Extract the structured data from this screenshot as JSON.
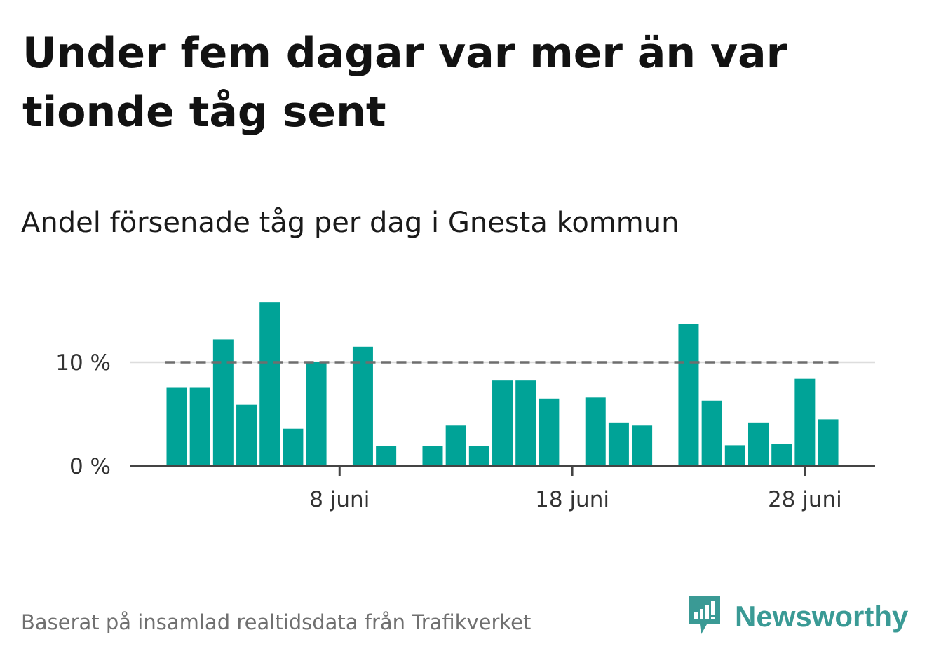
{
  "title": "Under fem dagar var mer än var tionde tåg sent",
  "subtitle": "Andel försenade tåg per dag i Gnesta kommun",
  "footer": "Baserat på insamlad realtidsdata från Trafikverket",
  "brand": {
    "name": "Newsworthy",
    "icon": "newsworthy-logo-icon",
    "color": "#3a9a95"
  },
  "colors": {
    "bar": "#00a397",
    "reference_line": "#6e6e6e",
    "baseline": "#444444",
    "grid": "#dddddd"
  },
  "chart_data": {
    "type": "bar",
    "title": "Andel försenade tåg per dag i Gnesta kommun",
    "x_start": "2023-06-01",
    "x_tick_labels": [
      "8 juni",
      "18 juni",
      "28 juni"
    ],
    "y_tick_labels": [
      "0 %",
      "10 %"
    ],
    "ylim": [
      0,
      16
    ],
    "reference_line": 10,
    "grid": true,
    "values": [
      7.6,
      7.6,
      12.2,
      5.9,
      15.8,
      3.6,
      10.0,
      0,
      11.5,
      1.9,
      0,
      1.9,
      3.9,
      1.9,
      8.3,
      8.3,
      6.5,
      0,
      6.6,
      4.2,
      3.9,
      0,
      13.7,
      6.3,
      2.0,
      4.2,
      2.1,
      8.4,
      4.5
    ]
  }
}
